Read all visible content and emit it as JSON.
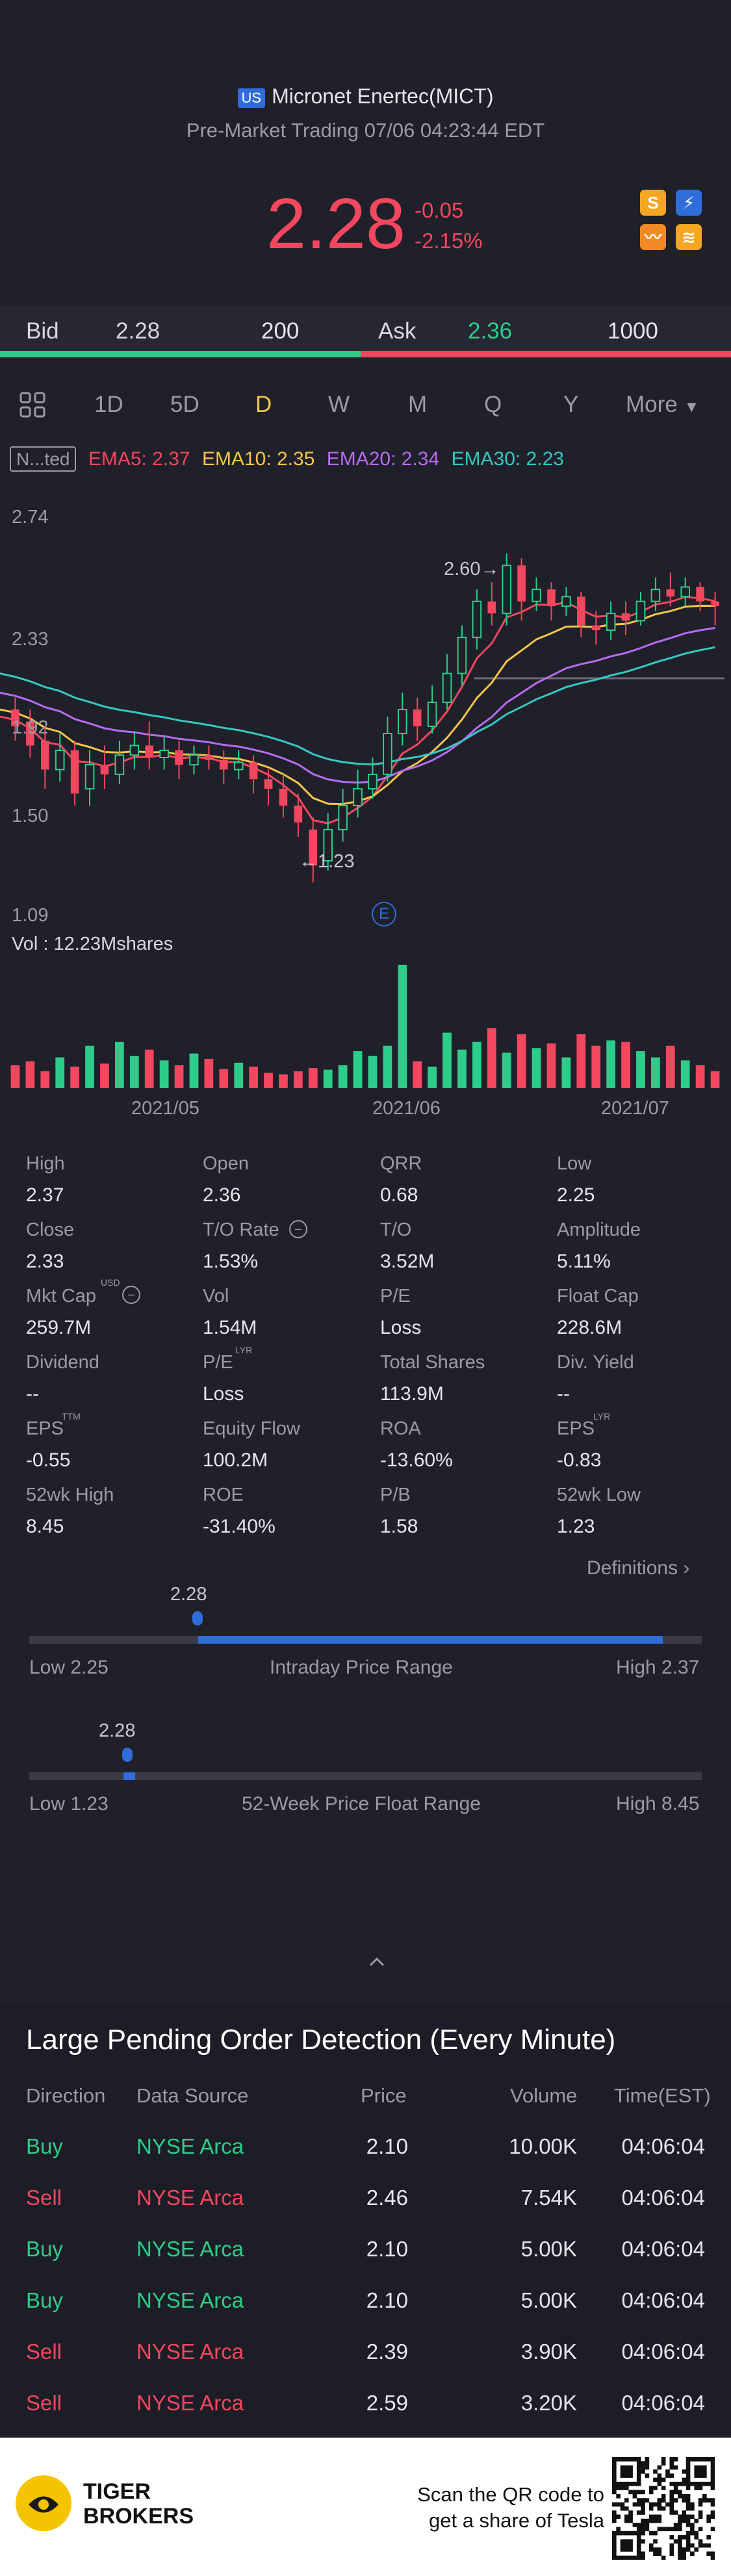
{
  "header": {
    "market_badge": "US",
    "title": "Micronet Enertec(MICT)",
    "status": "Pre-Market Trading 07/06 04:23:44 EDT",
    "price": "2.28",
    "change": "-0.05",
    "change_pct": "-2.15%",
    "icons": [
      "s-badge-icon",
      "lightning-icon",
      "chart-wave-icon",
      "database-icon"
    ]
  },
  "bidask": {
    "bid_label": "Bid",
    "bid_price": "2.28",
    "bid_size": "200",
    "ask_label": "Ask",
    "ask_price": "2.36",
    "ask_size": "1000"
  },
  "periods": {
    "items": [
      "1D",
      "5D",
      "D",
      "W",
      "M",
      "Q",
      "Y",
      "More"
    ],
    "active": "D"
  },
  "indicators": {
    "tag": "N...ted",
    "ema5": "EMA5: 2.37",
    "ema10": "EMA10: 2.35",
    "ema20": "EMA20: 2.34",
    "ema30": "EMA30: 2.23",
    "colors": {
      "ema5": "#f2475f",
      "ema10": "#f5c64a",
      "ema20": "#b86bf0",
      "ema30": "#35c9c0"
    }
  },
  "chart_data": {
    "type": "candlestick",
    "y_ticks": [
      "2.74",
      "2.33",
      "1.92",
      "1.50",
      "1.09"
    ],
    "ylim": [
      1.09,
      2.74
    ],
    "annotations": {
      "high": "2.60",
      "low": "1.23"
    },
    "event_marker": "E",
    "volume_label": "Vol  : 12.23Mshares",
    "x_ticks": [
      "2021/05",
      "2021/06",
      "2021/07"
    ],
    "candles": [
      {
        "o": 1.95,
        "c": 1.88,
        "h": 2.0,
        "l": 1.82
      },
      {
        "o": 1.9,
        "c": 1.8,
        "h": 1.95,
        "l": 1.75
      },
      {
        "o": 1.82,
        "c": 1.7,
        "h": 1.88,
        "l": 1.62
      },
      {
        "o": 1.7,
        "c": 1.78,
        "h": 1.85,
        "l": 1.65
      },
      {
        "o": 1.78,
        "c": 1.6,
        "h": 1.82,
        "l": 1.55
      },
      {
        "o": 1.62,
        "c": 1.72,
        "h": 1.78,
        "l": 1.55
      },
      {
        "o": 1.72,
        "c": 1.68,
        "h": 1.8,
        "l": 1.62
      },
      {
        "o": 1.68,
        "c": 1.76,
        "h": 1.82,
        "l": 1.64
      },
      {
        "o": 1.76,
        "c": 1.8,
        "h": 1.86,
        "l": 1.7
      },
      {
        "o": 1.8,
        "c": 1.75,
        "h": 1.9,
        "l": 1.7
      },
      {
        "o": 1.75,
        "c": 1.78,
        "h": 1.84,
        "l": 1.7
      },
      {
        "o": 1.78,
        "c": 1.72,
        "h": 1.82,
        "l": 1.66
      },
      {
        "o": 1.72,
        "c": 1.76,
        "h": 1.8,
        "l": 1.68
      },
      {
        "o": 1.76,
        "c": 1.74,
        "h": 1.8,
        "l": 1.7
      },
      {
        "o": 1.74,
        "c": 1.7,
        "h": 1.78,
        "l": 1.64
      },
      {
        "o": 1.7,
        "c": 1.73,
        "h": 1.78,
        "l": 1.66
      },
      {
        "o": 1.73,
        "c": 1.66,
        "h": 1.76,
        "l": 1.6
      },
      {
        "o": 1.66,
        "c": 1.62,
        "h": 1.7,
        "l": 1.55
      },
      {
        "o": 1.62,
        "c": 1.55,
        "h": 1.68,
        "l": 1.5
      },
      {
        "o": 1.55,
        "c": 1.48,
        "h": 1.6,
        "l": 1.42
      },
      {
        "o": 1.45,
        "c": 1.3,
        "h": 1.5,
        "l": 1.23
      },
      {
        "o": 1.32,
        "c": 1.45,
        "h": 1.52,
        "l": 1.28
      },
      {
        "o": 1.45,
        "c": 1.55,
        "h": 1.62,
        "l": 1.4
      },
      {
        "o": 1.55,
        "c": 1.62,
        "h": 1.7,
        "l": 1.5
      },
      {
        "o": 1.62,
        "c": 1.68,
        "h": 1.75,
        "l": 1.58
      },
      {
        "o": 1.68,
        "c": 1.85,
        "h": 1.92,
        "l": 1.65
      },
      {
        "o": 1.85,
        "c": 1.95,
        "h": 2.02,
        "l": 1.8
      },
      {
        "o": 1.95,
        "c": 1.88,
        "h": 2.0,
        "l": 1.82
      },
      {
        "o": 1.88,
        "c": 1.98,
        "h": 2.05,
        "l": 1.85
      },
      {
        "o": 1.98,
        "c": 2.1,
        "h": 2.18,
        "l": 1.95
      },
      {
        "o": 2.1,
        "c": 2.25,
        "h": 2.3,
        "l": 2.05
      },
      {
        "o": 2.25,
        "c": 2.4,
        "h": 2.45,
        "l": 2.2
      },
      {
        "o": 2.4,
        "c": 2.35,
        "h": 2.48,
        "l": 2.3
      },
      {
        "o": 2.35,
        "c": 2.55,
        "h": 2.6,
        "l": 2.3
      },
      {
        "o": 2.55,
        "c": 2.4,
        "h": 2.58,
        "l": 2.32
      },
      {
        "o": 2.4,
        "c": 2.45,
        "h": 2.5,
        "l": 2.36
      },
      {
        "o": 2.45,
        "c": 2.38,
        "h": 2.48,
        "l": 2.32
      },
      {
        "o": 2.38,
        "c": 2.42,
        "h": 2.46,
        "l": 2.34
      },
      {
        "o": 2.42,
        "c": 2.3,
        "h": 2.44,
        "l": 2.25
      },
      {
        "o": 2.3,
        "c": 2.28,
        "h": 2.36,
        "l": 2.22
      },
      {
        "o": 2.28,
        "c": 2.35,
        "h": 2.4,
        "l": 2.24
      },
      {
        "o": 2.35,
        "c": 2.32,
        "h": 2.4,
        "l": 2.26
      },
      {
        "o": 2.32,
        "c": 2.4,
        "h": 2.44,
        "l": 2.3
      },
      {
        "o": 2.4,
        "c": 2.45,
        "h": 2.5,
        "l": 2.36
      },
      {
        "o": 2.45,
        "c": 2.42,
        "h": 2.52,
        "l": 2.38
      },
      {
        "o": 2.42,
        "c": 2.46,
        "h": 2.5,
        "l": 2.38
      },
      {
        "o": 2.46,
        "c": 2.4,
        "h": 2.48,
        "l": 2.36
      },
      {
        "o": 2.4,
        "c": 2.38,
        "h": 2.44,
        "l": 2.3
      }
    ],
    "volumes": [
      30,
      35,
      22,
      40,
      28,
      55,
      32,
      60,
      42,
      50,
      36,
      30,
      45,
      38,
      25,
      33,
      28,
      20,
      18,
      22,
      26,
      24,
      30,
      48,
      42,
      55,
      160,
      35,
      28,
      72,
      50,
      60,
      78,
      46,
      70,
      52,
      58,
      40,
      70,
      55,
      62,
      60,
      48,
      40,
      55,
      36,
      30,
      22
    ]
  },
  "stats": [
    {
      "label": "High",
      "value": "2.37"
    },
    {
      "label": "Open",
      "value": "2.36"
    },
    {
      "label": "QRR",
      "value": "0.68"
    },
    {
      "label": "Low",
      "value": "2.25"
    },
    {
      "label": "Close",
      "value": "2.33"
    },
    {
      "label": "T/O Rate",
      "value": "1.53%"
    },
    {
      "label": "T/O",
      "value": "3.52M"
    },
    {
      "label": "Amplitude",
      "value": "5.11%"
    },
    {
      "label": "Mkt Cap",
      "value": "259.7M"
    },
    {
      "label": "Vol",
      "value": "1.54M"
    },
    {
      "label": "P/E",
      "value": "Loss"
    },
    {
      "label": "Float Cap",
      "value": "228.6M"
    },
    {
      "label": "Dividend",
      "value": "--"
    },
    {
      "label": "P/E",
      "value": "Loss"
    },
    {
      "label": "Total Shares",
      "value": "113.9M"
    },
    {
      "label": "Div. Yield",
      "value": "--"
    },
    {
      "label": "EPS",
      "value": "-0.55"
    },
    {
      "label": "Equity Flow",
      "value": "100.2M"
    },
    {
      "label": "ROA",
      "value": "-13.60%"
    },
    {
      "label": "EPS",
      "value": "-0.83"
    },
    {
      "label": "52wk High",
      "value": "8.45"
    },
    {
      "label": "ROE",
      "value": "-31.40%"
    },
    {
      "label": "P/B",
      "value": "1.58"
    },
    {
      "label": "52wk Low",
      "value": "1.23"
    }
  ],
  "stat_superscripts": {
    "mktcap": "USD",
    "pe2": "LYR",
    "eps1": "TTM",
    "eps2": "LYR"
  },
  "definitions_link": "Definitions",
  "intraday": {
    "marker": "2.28",
    "low": "Low 2.25",
    "title": "Intraday Price Range",
    "high": "High 2.37",
    "fill_fraction": 0.25
  },
  "week52": {
    "marker": "2.28",
    "low": "Low 1.23",
    "title": "52-Week Price Float Range",
    "high": "High 8.45",
    "fill_fraction": 0.145
  },
  "orders": {
    "title": "Large Pending Order Detection (Every Minute)",
    "headers": [
      "Direction",
      "Data Source",
      "Price",
      "Volume",
      "Time(EST)"
    ],
    "rows": [
      {
        "dir": "Buy",
        "src": "NYSE Arca",
        "price": "2.10",
        "vol": "10.00K",
        "time": "04:06:04"
      },
      {
        "dir": "Sell",
        "src": "NYSE Arca",
        "price": "2.46",
        "vol": "7.54K",
        "time": "04:06:04"
      },
      {
        "dir": "Buy",
        "src": "NYSE Arca",
        "price": "2.10",
        "vol": "5.00K",
        "time": "04:06:04"
      },
      {
        "dir": "Buy",
        "src": "NYSE Arca",
        "price": "2.10",
        "vol": "5.00K",
        "time": "04:06:04"
      },
      {
        "dir": "Sell",
        "src": "NYSE Arca",
        "price": "2.39",
        "vol": "3.90K",
        "time": "04:06:04"
      },
      {
        "dir": "Sell",
        "src": "NYSE Arca",
        "price": "2.59",
        "vol": "3.20K",
        "time": "04:06:04"
      }
    ]
  },
  "footer": {
    "brand_line1": "TIGER",
    "brand_line2": "BROKERS",
    "qr_text_line1": "Scan the QR code to",
    "qr_text_line2": "get a share of Tesla"
  }
}
